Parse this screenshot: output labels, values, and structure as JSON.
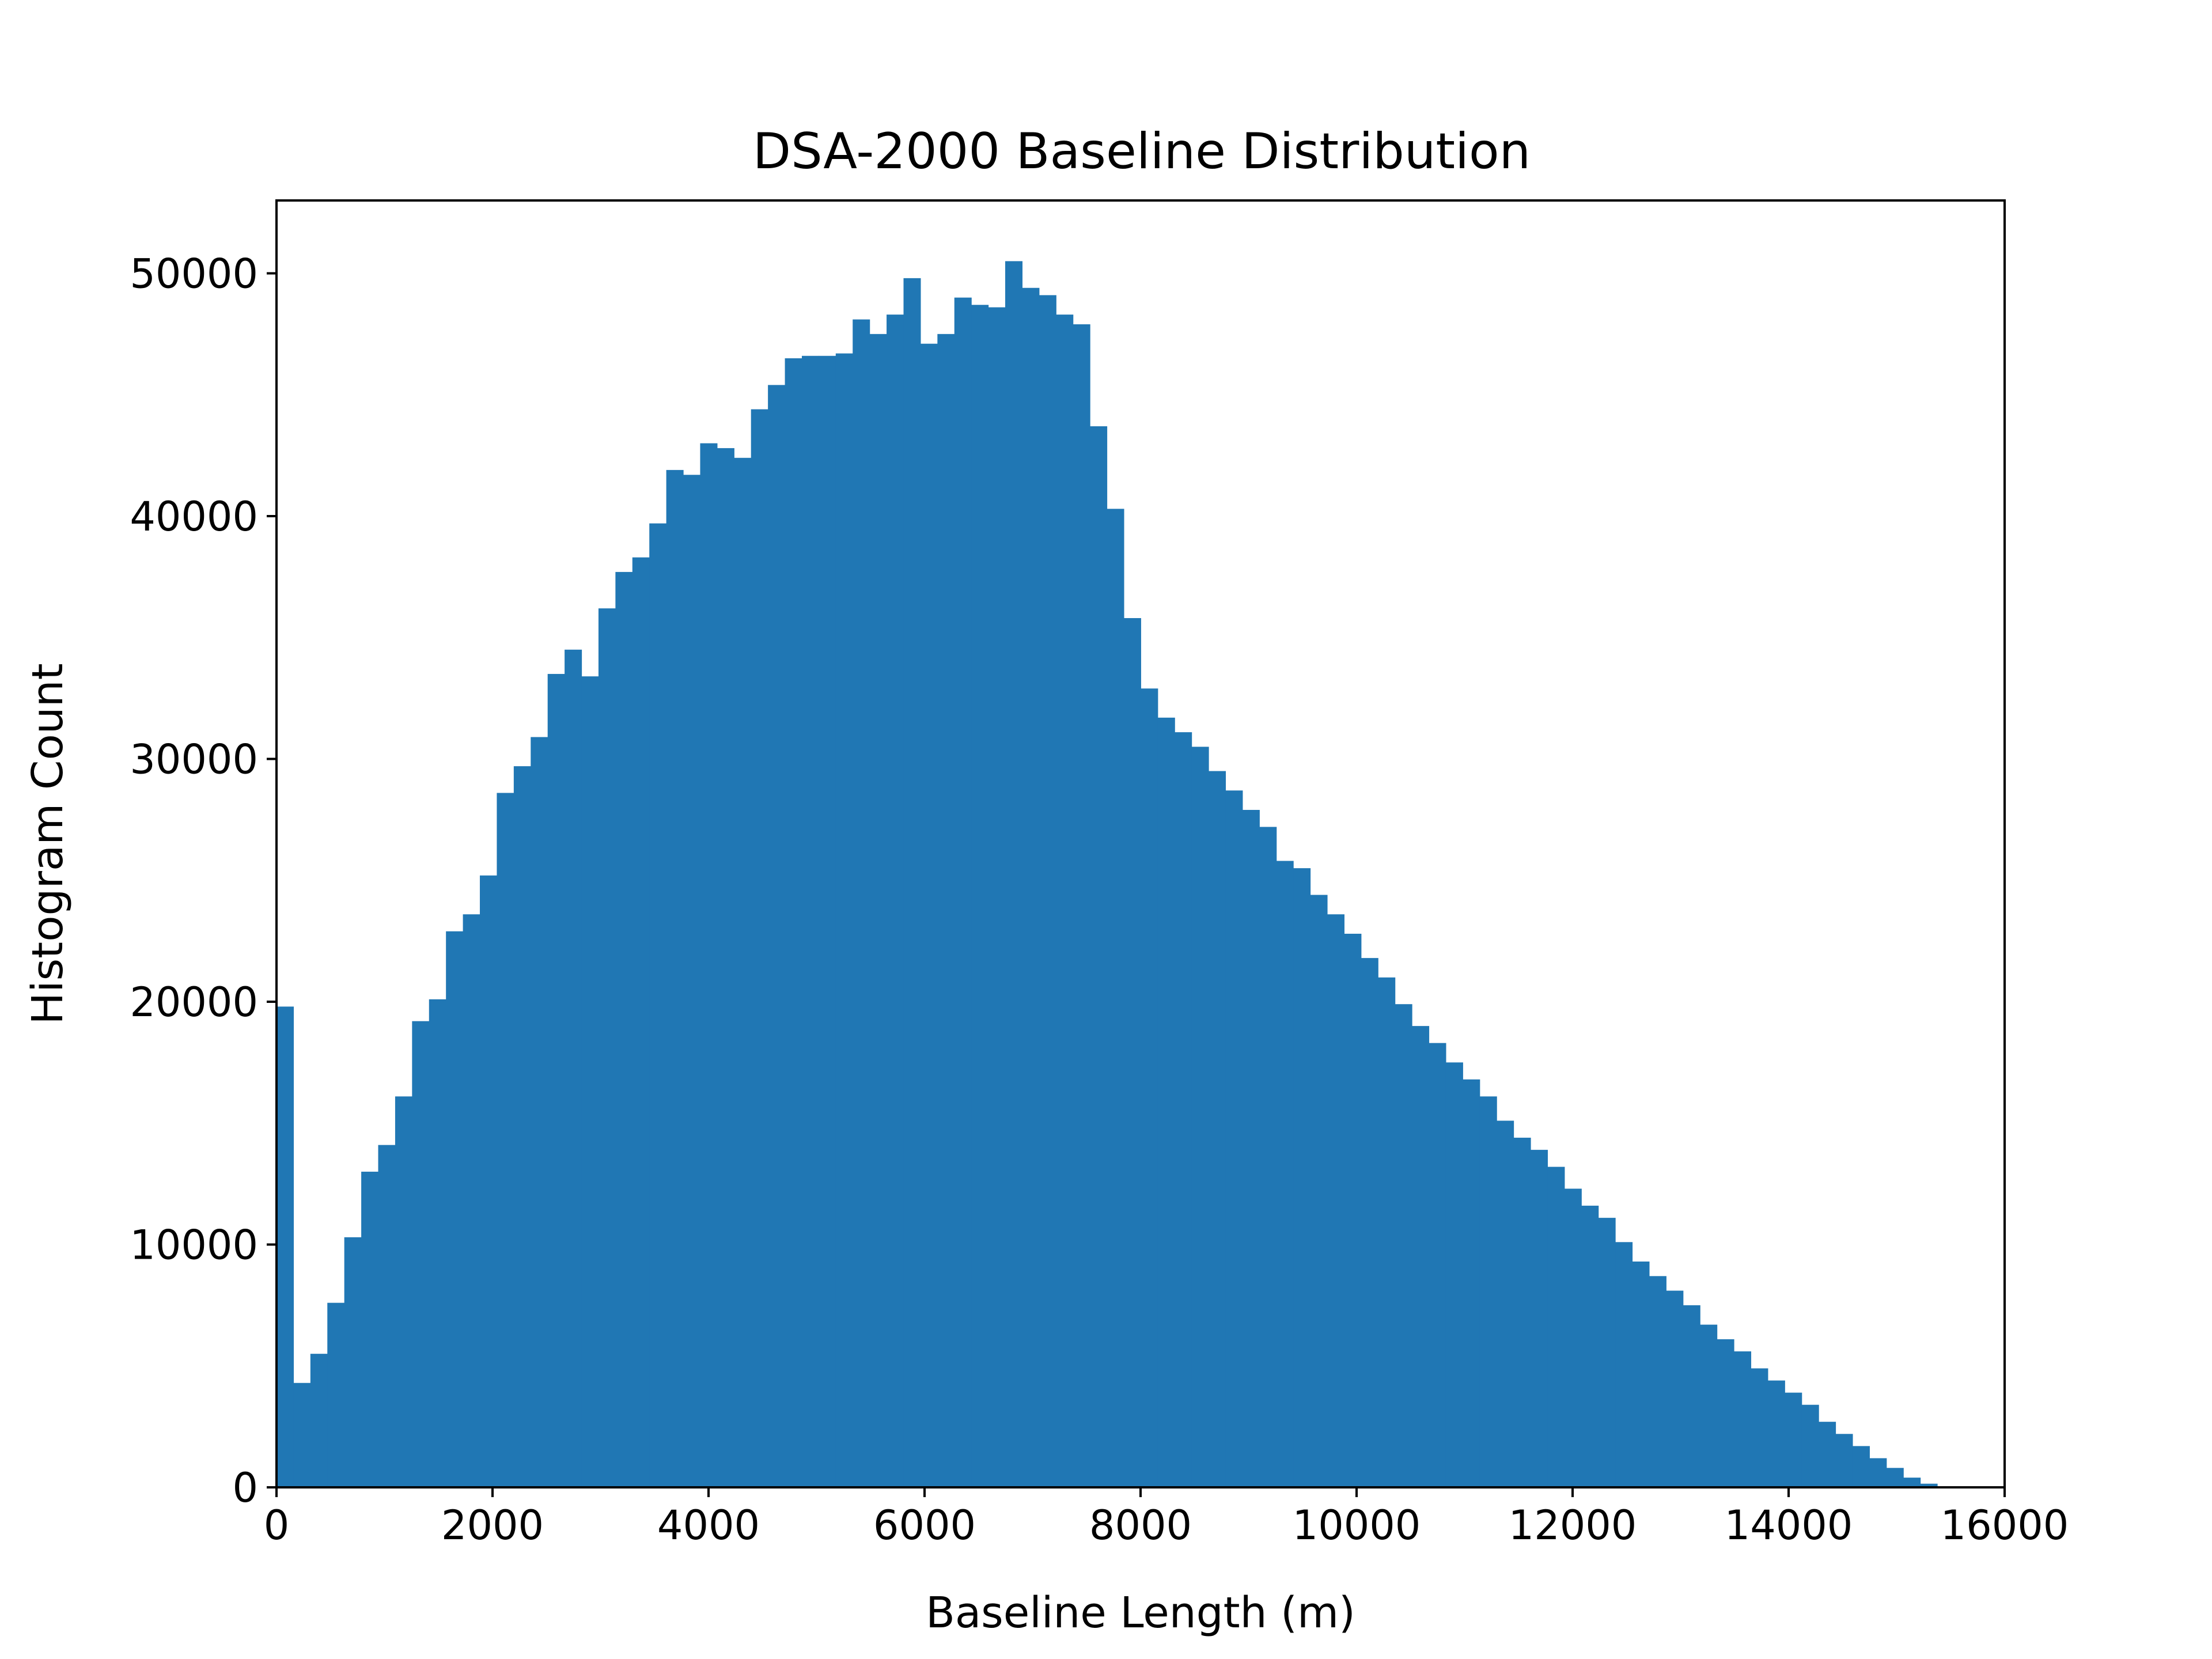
{
  "chart_data": {
    "type": "bar",
    "title": "DSA-2000 Baseline Distribution",
    "xlabel": "Baseline Length (m)",
    "ylabel": "Histogram Count",
    "xlim": [
      0,
      16000
    ],
    "ylim": [
      0,
      53000
    ],
    "x_ticks": [
      "0",
      "2000",
      "4000",
      "6000",
      "8000",
      "10000",
      "12000",
      "14000",
      "16000"
    ],
    "y_ticks": [
      "0",
      "10000",
      "20000",
      "30000",
      "40000",
      "50000"
    ],
    "grid": false,
    "legend": "none",
    "color": "#2077b4",
    "bins": {
      "start": 0,
      "bin_width": 156.9,
      "counts": [
        19800,
        4300,
        5500,
        7600,
        10300,
        13000,
        14100,
        16100,
        19200,
        20100,
        22900,
        23600,
        25200,
        28600,
        29700,
        30900,
        33500,
        34500,
        33400,
        36200,
        37700,
        38300,
        39700,
        41900,
        41700,
        43000,
        42800,
        42400,
        44400,
        45400,
        46500,
        46600,
        46600,
        46700,
        48100,
        47500,
        48300,
        49800,
        47100,
        47500,
        49000,
        48700,
        48600,
        50500,
        49400,
        49100,
        48300,
        47900,
        43700,
        40300,
        35800,
        32900,
        31700,
        31100,
        30500,
        29500,
        28700,
        27900,
        27200,
        25800,
        25500,
        24400,
        23600,
        22800,
        21800,
        21000,
        19900,
        19000,
        18300,
        17500,
        16800,
        16100,
        15100,
        14400,
        13900,
        13200,
        12300,
        11600,
        11100,
        10100,
        9300,
        8700,
        8100,
        7500,
        6700,
        6100,
        5600,
        4900,
        4400,
        3900,
        3400,
        2700,
        2200,
        1700,
        1200,
        800,
        400,
        150,
        40,
        0,
        0,
        0,
        0,
        0,
        0,
        0
      ]
    }
  }
}
